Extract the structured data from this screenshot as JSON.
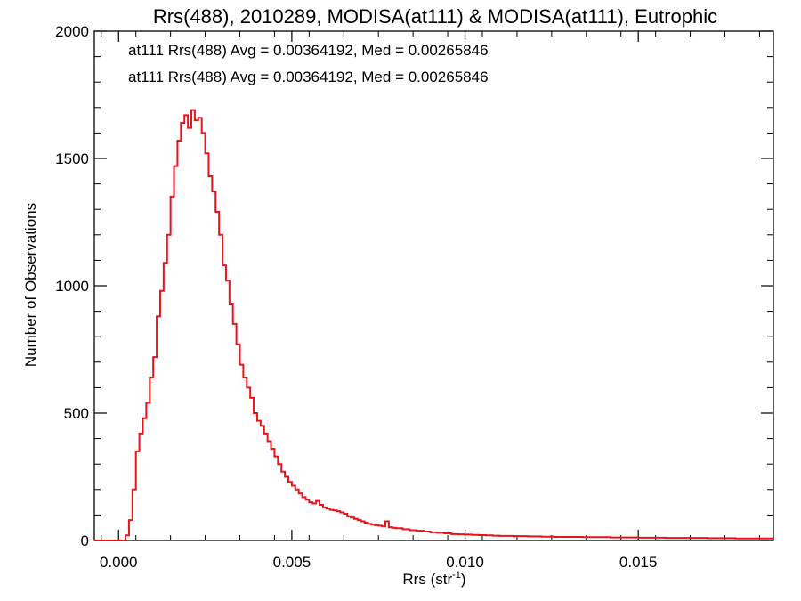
{
  "chart_data": {
    "type": "histogram",
    "title": "Rrs(488), 2010289, MODISA(at111) & MODISA(at111), Eutrophic",
    "xlabel_base": "Rrs (str",
    "xlabel_sup": "-1",
    "xlabel_close": ")",
    "ylabel": "Number of Observations",
    "xlim": [
      -0.0007,
      0.0189
    ],
    "ylim": [
      0,
      2000
    ],
    "xticks": [
      0.0,
      0.005,
      0.01,
      0.015
    ],
    "xtick_labels": [
      "0.000",
      "0.005",
      "0.010",
      "0.015"
    ],
    "yticks": [
      0,
      500,
      1000,
      1500,
      2000
    ],
    "ytick_labels": [
      "0",
      "500",
      "1000",
      "1500",
      "2000"
    ],
    "legend": [
      {
        "text": "at111 Rrs(488) Avg = 0.00364192, Med = 0.00265846",
        "color": "#000000"
      },
      {
        "text": "at111 Rrs(488) Avg = 0.00364192, Med = 0.00265846",
        "color": "#e8141a"
      }
    ],
    "series": [
      {
        "color": "#e8141a",
        "x": [
          -0.0007,
          0.0002,
          0.0003,
          0.0004,
          0.0005,
          0.0006,
          0.0007,
          0.0008,
          0.0009,
          0.001,
          0.0011,
          0.0012,
          0.0013,
          0.0014,
          0.0015,
          0.0016,
          0.0017,
          0.0018,
          0.0019,
          0.002,
          0.0021,
          0.0022,
          0.0023,
          0.0024,
          0.0025,
          0.0026,
          0.0027,
          0.0028,
          0.0029,
          0.003,
          0.0031,
          0.0032,
          0.0033,
          0.0034,
          0.0035,
          0.0036,
          0.0037,
          0.0038,
          0.0039,
          0.004,
          0.0041,
          0.0042,
          0.0043,
          0.0044,
          0.0045,
          0.0046,
          0.0047,
          0.0048,
          0.0049,
          0.005,
          0.0051,
          0.0052,
          0.0053,
          0.0054,
          0.0055,
          0.0056,
          0.0057,
          0.0058,
          0.0059,
          0.006,
          0.0061,
          0.0062,
          0.0063,
          0.0064,
          0.0065,
          0.0066,
          0.0067,
          0.0068,
          0.0069,
          0.007,
          0.0071,
          0.0072,
          0.0073,
          0.0074,
          0.0075,
          0.0076,
          0.0077,
          0.0078,
          0.0079,
          0.008,
          0.0082,
          0.0084,
          0.0086,
          0.0088,
          0.009,
          0.0092,
          0.0094,
          0.0096,
          0.0098,
          0.01,
          0.0102,
          0.0104,
          0.0106,
          0.0108,
          0.011,
          0.0114,
          0.0118,
          0.0122,
          0.0126,
          0.013,
          0.0134,
          0.0138,
          0.0142,
          0.0146,
          0.015,
          0.0154,
          0.0158,
          0.0162,
          0.0166,
          0.017,
          0.0174,
          0.0178,
          0.0182,
          0.0186
        ],
        "y": [
          0,
          20,
          80,
          200,
          350,
          420,
          480,
          540,
          640,
          720,
          880,
          980,
          1090,
          1200,
          1350,
          1470,
          1570,
          1640,
          1670,
          1620,
          1690,
          1650,
          1660,
          1600,
          1520,
          1430,
          1370,
          1290,
          1200,
          1080,
          1020,
          930,
          850,
          770,
          690,
          640,
          600,
          560,
          500,
          470,
          450,
          420,
          390,
          360,
          330,
          300,
          270,
          250,
          230,
          215,
          200,
          185,
          170,
          160,
          150,
          145,
          155,
          140,
          130,
          125,
          120,
          118,
          115,
          110,
          105,
          95,
          90,
          85,
          80,
          75,
          70,
          65,
          62,
          60,
          58,
          55,
          75,
          52,
          50,
          48,
          44,
          40,
          38,
          35,
          32,
          30,
          28,
          25,
          24,
          23,
          22,
          21,
          20,
          19,
          18,
          17,
          16,
          15,
          14,
          14,
          13,
          13,
          12,
          12,
          11,
          11,
          10,
          10,
          10,
          9,
          9,
          8,
          8,
          8
        ]
      }
    ]
  }
}
